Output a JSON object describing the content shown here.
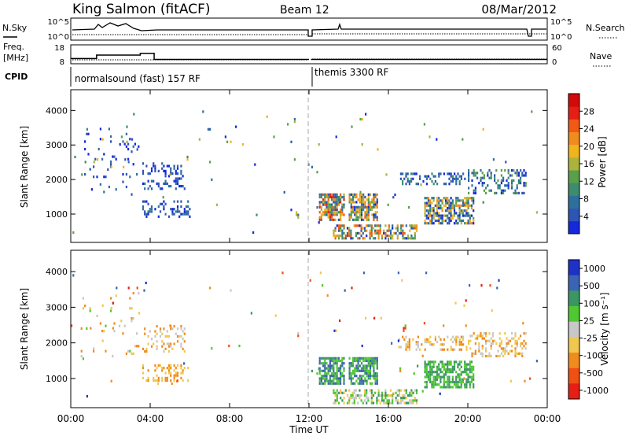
{
  "header": {
    "station": "King Salmon (fitACF)",
    "beam": "Beam 12",
    "date": "08/Mar/2012"
  },
  "status_panel": {
    "nsky_label": "N.Sky",
    "nsky_ticks": [
      "10^5",
      "10^0"
    ],
    "nsearch_label": "N.Search",
    "nsearch_ticks": [
      "10^5",
      "10^0"
    ],
    "freq_label_1": "Freq.",
    "freq_label_2": "[MHz]",
    "freq_ticks": [
      "18",
      "8"
    ],
    "nave_label": "Nave",
    "nave_ticks": [
      "60",
      "0"
    ],
    "cpid_label": "CPID",
    "cpid_programs": [
      {
        "label": "normalsound (fast) 157 RF",
        "start_hour": 0,
        "end_hour": 12
      },
      {
        "label": "themis 3300 RF",
        "start_hour": 12,
        "end_hour": 24
      }
    ],
    "freq_steps": [
      {
        "start_hour": 0,
        "end_hour": 1.3,
        "mhz": 11
      },
      {
        "start_hour": 1.3,
        "end_hour": 3.5,
        "mhz": 13
      },
      {
        "start_hour": 3.5,
        "end_hour": 4.2,
        "mhz": 14
      },
      {
        "start_hour": 4.2,
        "end_hour": 12,
        "mhz": 10.5
      },
      {
        "start_hour": 12.1,
        "end_hour": 24,
        "mhz": 10.5
      }
    ]
  },
  "chart_data": [
    {
      "type": "heatmap",
      "name": "power",
      "ylabel": "Slant Range [km]",
      "xlabel": "Time UT",
      "x_ticks": [
        "00:00",
        "04:00",
        "08:00",
        "12:00",
        "16:00",
        "20:00",
        "00:00"
      ],
      "y_ticks": [
        "1000",
        "2000",
        "3000",
        "4000"
      ],
      "ylim": [
        180,
        4600
      ],
      "xlim_hours": [
        0,
        24
      ],
      "colorbar_label": "Power [dB]",
      "colorbar_ticks": [
        "4",
        "8",
        "12",
        "16",
        "20",
        "24",
        "28"
      ],
      "colorbar_colors": [
        "#1428dc",
        "#2d55b4",
        "#2f6f9e",
        "#3c8c6e",
        "#5a9f4b",
        "#aab43c",
        "#f0b41e",
        "#f08c1e",
        "#f05a14",
        "#e61e14",
        "#d20a0a"
      ],
      "features": [
        {
          "t0": 0.5,
          "t1": 3.5,
          "r0": 1500,
          "r1": 3500,
          "density": 0.05,
          "levels": [
            0,
            2
          ]
        },
        {
          "t0": 3.6,
          "t1": 5.8,
          "r0": 1700,
          "r1": 2500,
          "density": 0.25,
          "levels": [
            0,
            2
          ]
        },
        {
          "t0": 3.6,
          "t1": 6.0,
          "r0": 900,
          "r1": 1400,
          "density": 0.3,
          "levels": [
            0,
            2
          ]
        },
        {
          "t0": 12.5,
          "t1": 13.8,
          "r0": 800,
          "r1": 1600,
          "density": 0.75,
          "levels": [
            1,
            9
          ]
        },
        {
          "t0": 14.0,
          "t1": 15.5,
          "r0": 800,
          "r1": 1600,
          "density": 0.7,
          "levels": [
            0,
            8
          ]
        },
        {
          "t0": 13.2,
          "t1": 17.5,
          "r0": 250,
          "r1": 700,
          "density": 0.55,
          "levels": [
            0,
            8
          ]
        },
        {
          "t0": 16.5,
          "t1": 20.0,
          "r0": 1800,
          "r1": 2200,
          "density": 0.35,
          "levels": [
            0,
            3
          ]
        },
        {
          "t0": 17.8,
          "t1": 20.3,
          "r0": 700,
          "r1": 1500,
          "density": 0.65,
          "levels": [
            0,
            7
          ]
        },
        {
          "t0": 20.0,
          "t1": 23.0,
          "r0": 1600,
          "r1": 2300,
          "density": 0.3,
          "levels": [
            0,
            4
          ]
        },
        {
          "t0": 0.0,
          "t1": 24.0,
          "r0": 400,
          "r1": 4000,
          "density": 0.006,
          "levels": [
            0,
            6
          ]
        }
      ]
    },
    {
      "type": "heatmap",
      "name": "velocity",
      "ylabel": "Slant Range [km]",
      "xlabel": "Time UT",
      "x_ticks": [
        "00:00",
        "04:00",
        "08:00",
        "12:00",
        "16:00",
        "20:00",
        "00:00"
      ],
      "y_ticks": [
        "1000",
        "2000",
        "3000",
        "4000"
      ],
      "ylim": [
        180,
        4600
      ],
      "xlim_hours": [
        0,
        24
      ],
      "colorbar_label": "Velocity [m s⁻¹]",
      "colorbar_ticks": [
        "1000",
        "500",
        "100",
        "25",
        "-25",
        "-100",
        "-500",
        "-1000"
      ],
      "colorbar_colors": [
        "#1e32c8",
        "#3c64b4",
        "#3c9664",
        "#50c832",
        "#c8c8c8",
        "#f0c850",
        "#f08c1e",
        "#f05014",
        "#e61e14"
      ],
      "features": [
        {
          "t0": 0.5,
          "t1": 3.5,
          "r0": 1500,
          "r1": 3500,
          "density": 0.05,
          "levels": [
            3,
            6
          ]
        },
        {
          "t0": 3.6,
          "t1": 5.8,
          "r0": 1700,
          "r1": 2500,
          "density": 0.25,
          "levels": [
            4,
            6
          ]
        },
        {
          "t0": 3.6,
          "t1": 6.0,
          "r0": 900,
          "r1": 1400,
          "density": 0.3,
          "levels": [
            5,
            6
          ]
        },
        {
          "t0": 12.5,
          "t1": 13.8,
          "r0": 800,
          "r1": 1600,
          "density": 0.75,
          "levels": [
            1,
            3
          ]
        },
        {
          "t0": 14.0,
          "t1": 15.5,
          "r0": 800,
          "r1": 1600,
          "density": 0.7,
          "levels": [
            1,
            3
          ]
        },
        {
          "t0": 13.2,
          "t1": 17.5,
          "r0": 250,
          "r1": 700,
          "density": 0.55,
          "levels": [
            2,
            5
          ]
        },
        {
          "t0": 16.5,
          "t1": 20.0,
          "r0": 1800,
          "r1": 2200,
          "density": 0.35,
          "levels": [
            4,
            6
          ]
        },
        {
          "t0": 17.8,
          "t1": 20.3,
          "r0": 700,
          "r1": 1500,
          "density": 0.65,
          "levels": [
            2,
            3
          ]
        },
        {
          "t0": 20.0,
          "t1": 23.0,
          "r0": 1600,
          "r1": 2300,
          "density": 0.3,
          "levels": [
            4,
            6
          ]
        },
        {
          "t0": 0.0,
          "t1": 24.0,
          "r0": 400,
          "r1": 4000,
          "density": 0.006,
          "levels": [
            0,
            8
          ]
        }
      ]
    }
  ]
}
